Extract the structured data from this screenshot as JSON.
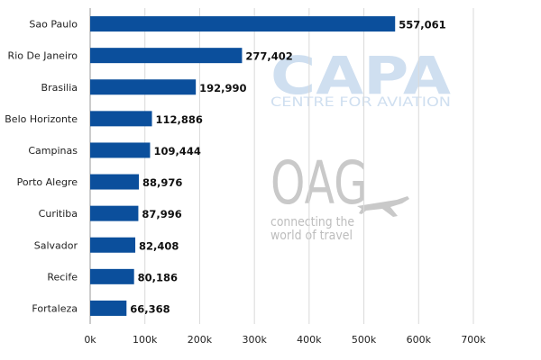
{
  "chart_data": {
    "type": "bar",
    "orientation": "horizontal",
    "title": "",
    "xlabel": "",
    "ylabel": "",
    "xlim": [
      0,
      700000
    ],
    "x_ticks": [
      0,
      100000,
      200000,
      300000,
      400000,
      500000,
      600000,
      700000
    ],
    "x_tick_labels": [
      "0k",
      "100k",
      "200k",
      "300k",
      "400k",
      "500k",
      "600k",
      "700k"
    ],
    "grid": "vertical",
    "bar_color": "#0b4f9c",
    "categories": [
      "Sao Paulo",
      "Rio De Janeiro",
      "Brasilia",
      "Belo Horizonte",
      "Campinas",
      "Porto Alegre",
      "Curitiba",
      "Salvador",
      "Recife",
      "Fortaleza"
    ],
    "values": [
      557061,
      277402,
      192990,
      112886,
      109444,
      88976,
      87996,
      82408,
      80186,
      66368
    ],
    "value_labels": [
      "557,061",
      "277,402",
      "192,990",
      "112,886",
      "109,444",
      "88,976",
      "87,996",
      "82,408",
      "80,186",
      "66,368"
    ]
  },
  "watermarks": {
    "capa": {
      "logo": "CAPA",
      "subtitle": "CENTRE FOR AVIATION",
      "color": "#cfdff0"
    },
    "oag": {
      "logo": "OAG",
      "tagline_line1": "connecting the",
      "tagline_line2": "world of travel",
      "icon": "airplane-icon",
      "color": "#c9c9c9"
    }
  }
}
